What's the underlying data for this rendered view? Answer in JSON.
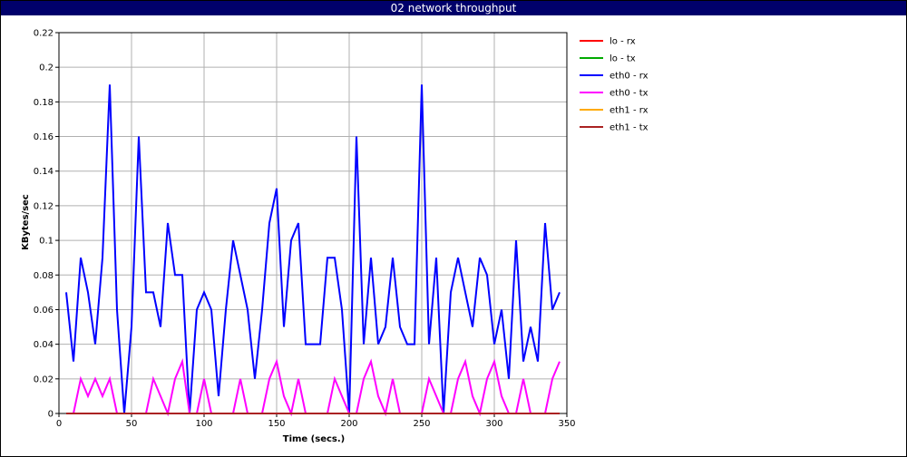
{
  "window": {
    "title": "02 network throughput"
  },
  "chart_data": {
    "type": "line",
    "title": "02 network throughput",
    "xlabel": "Time (secs.)",
    "ylabel": "KBytes/sec",
    "xlim": [
      0,
      350
    ],
    "ylim": [
      0,
      0.22
    ],
    "x_ticks": [
      0,
      50,
      100,
      150,
      200,
      250,
      300,
      350
    ],
    "y_ticks": [
      0,
      0.02,
      0.04,
      0.06,
      0.08,
      0.1,
      0.12,
      0.14,
      0.16,
      0.18,
      0.2,
      0.22
    ],
    "grid": true,
    "legend_position": "right",
    "x": [
      5,
      10,
      15,
      20,
      25,
      30,
      35,
      40,
      45,
      50,
      55,
      60,
      65,
      70,
      75,
      80,
      85,
      90,
      95,
      100,
      105,
      110,
      115,
      120,
      125,
      130,
      135,
      140,
      145,
      150,
      155,
      160,
      165,
      170,
      175,
      180,
      185,
      190,
      195,
      200,
      205,
      210,
      215,
      220,
      225,
      230,
      235,
      240,
      245,
      250,
      255,
      260,
      265,
      270,
      275,
      280,
      285,
      290,
      295,
      300,
      305,
      310,
      315,
      320,
      325,
      330,
      335,
      340,
      345
    ],
    "series": [
      {
        "name": "lo - rx",
        "color": "#ff0000",
        "values": [
          0,
          0,
          0,
          0,
          0,
          0,
          0,
          0,
          0,
          0,
          0,
          0,
          0,
          0,
          0,
          0,
          0,
          0,
          0,
          0,
          0,
          0,
          0,
          0,
          0,
          0,
          0,
          0,
          0,
          0,
          0,
          0,
          0,
          0,
          0,
          0,
          0,
          0,
          0,
          0,
          0,
          0,
          0,
          0,
          0,
          0,
          0,
          0,
          0,
          0,
          0,
          0,
          0,
          0,
          0,
          0,
          0,
          0,
          0,
          0,
          0,
          0,
          0,
          0,
          0,
          0,
          0,
          0,
          0
        ]
      },
      {
        "name": "lo - tx",
        "color": "#00aa00",
        "values": [
          0,
          0,
          0,
          0,
          0,
          0,
          0,
          0,
          0,
          0,
          0,
          0,
          0,
          0,
          0,
          0,
          0,
          0,
          0,
          0,
          0,
          0,
          0,
          0,
          0,
          0,
          0,
          0,
          0,
          0,
          0,
          0,
          0,
          0,
          0,
          0,
          0,
          0,
          0,
          0,
          0,
          0,
          0,
          0,
          0,
          0,
          0,
          0,
          0,
          0,
          0,
          0,
          0,
          0,
          0,
          0,
          0,
          0,
          0,
          0,
          0,
          0,
          0,
          0,
          0,
          0,
          0,
          0,
          0
        ]
      },
      {
        "name": "eth0 - rx",
        "color": "#0000ff",
        "values": [
          0.07,
          0.03,
          0.09,
          0.07,
          0.04,
          0.09,
          0.19,
          0.06,
          0,
          0.05,
          0.16,
          0.07,
          0.07,
          0.05,
          0.11,
          0.08,
          0.08,
          0,
          0.06,
          0.07,
          0.06,
          0.01,
          0.06,
          0.1,
          0.08,
          0.06,
          0.02,
          0.06,
          0.11,
          0.13,
          0.05,
          0.1,
          0.11,
          0.04,
          0.04,
          0.04,
          0.09,
          0.09,
          0.06,
          0,
          0.16,
          0.04,
          0.09,
          0.04,
          0.05,
          0.09,
          0.05,
          0.04,
          0.04,
          0.19,
          0.04,
          0.09,
          0,
          0.07,
          0.09,
          0.07,
          0.05,
          0.09,
          0.08,
          0.04,
          0.06,
          0.02,
          0.1,
          0.03,
          0.05,
          0.03,
          0.11,
          0.06,
          0.07
        ]
      },
      {
        "name": "eth0 - tx",
        "color": "#ff00ff",
        "values": [
          0,
          0,
          0.02,
          0.01,
          0.02,
          0.01,
          0.02,
          0,
          0,
          0,
          0,
          0,
          0.02,
          0.01,
          0,
          0.02,
          0.03,
          0,
          0,
          0.02,
          0,
          0,
          0,
          0,
          0.02,
          0,
          0,
          0,
          0.02,
          0.03,
          0.01,
          0,
          0.02,
          0,
          0,
          0,
          0,
          0.02,
          0.01,
          0,
          0,
          0.02,
          0.03,
          0.01,
          0,
          0.02,
          0,
          0,
          0,
          0,
          0.02,
          0.01,
          0,
          0,
          0.02,
          0.03,
          0.01,
          0,
          0.02,
          0.03,
          0.01,
          0,
          0,
          0.02,
          0,
          0,
          0,
          0.02,
          0.03
        ]
      },
      {
        "name": "eth1 - rx",
        "color": "#ffaa00",
        "values": [
          0,
          0,
          0,
          0,
          0,
          0,
          0,
          0,
          0,
          0,
          0,
          0,
          0,
          0,
          0,
          0,
          0,
          0,
          0,
          0,
          0,
          0,
          0,
          0,
          0,
          0,
          0,
          0,
          0,
          0,
          0,
          0,
          0,
          0,
          0,
          0,
          0,
          0,
          0,
          0,
          0,
          0,
          0,
          0,
          0,
          0,
          0,
          0,
          0,
          0,
          0,
          0,
          0,
          0,
          0,
          0,
          0,
          0,
          0,
          0,
          0,
          0,
          0,
          0,
          0,
          0,
          0,
          0,
          0
        ]
      },
      {
        "name": "eth1 - tx",
        "color": "#aa2222",
        "values": [
          0,
          0,
          0,
          0,
          0,
          0,
          0,
          0,
          0,
          0,
          0,
          0,
          0,
          0,
          0,
          0,
          0,
          0,
          0,
          0,
          0,
          0,
          0,
          0,
          0,
          0,
          0,
          0,
          0,
          0,
          0,
          0,
          0,
          0,
          0,
          0,
          0,
          0,
          0,
          0,
          0,
          0,
          0,
          0,
          0,
          0,
          0,
          0,
          0,
          0,
          0,
          0,
          0,
          0,
          0,
          0,
          0,
          0,
          0,
          0,
          0,
          0,
          0,
          0,
          0,
          0,
          0,
          0,
          0
        ]
      }
    ]
  }
}
